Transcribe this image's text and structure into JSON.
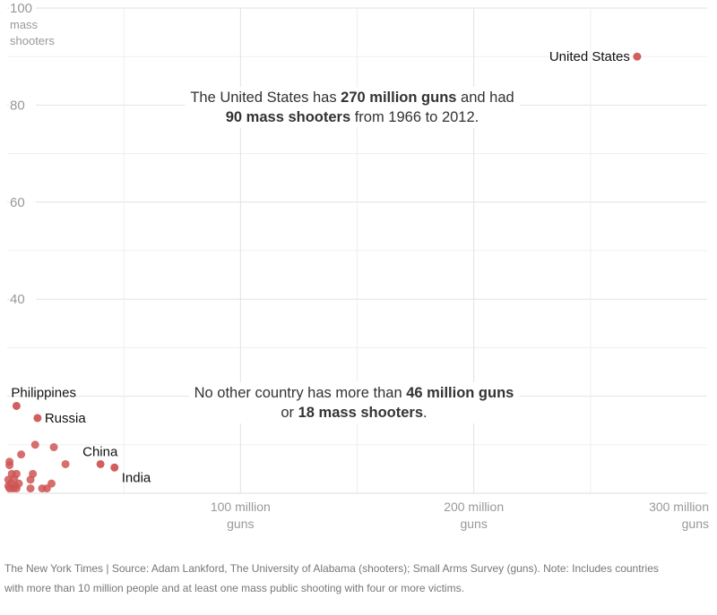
{
  "chart_data": {
    "type": "scatter",
    "title": "",
    "xlabel": "",
    "ylabel": "",
    "xlim": [
      0,
      300
    ],
    "ylim": [
      0,
      100
    ],
    "grid": true,
    "x_unit": "million guns",
    "y_unit": "mass shooters",
    "y_ticks": [
      {
        "value": 100,
        "label": "100",
        "sub": [
          "mass",
          "shooters"
        ]
      },
      {
        "value": 80,
        "label": "80"
      },
      {
        "value": 60,
        "label": "60"
      },
      {
        "value": 40,
        "label": "40"
      }
    ],
    "x_ticks": [
      {
        "value": 100,
        "line1": "100 million",
        "line2": "guns"
      },
      {
        "value": 200,
        "line1": "200 million",
        "line2": "guns"
      },
      {
        "value": 300,
        "line1": "300 million",
        "line2": "guns"
      }
    ],
    "point_color": "#d05555",
    "labeled_points": [
      {
        "name": "United States",
        "x": 270,
        "y": 90
      },
      {
        "name": "Philippines",
        "x": 4,
        "y": 18
      },
      {
        "name": "Russia",
        "x": 13,
        "y": 15.5
      },
      {
        "name": "China",
        "x": 40,
        "y": 6
      },
      {
        "name": "India",
        "x": 46,
        "y": 5.3
      }
    ],
    "unlabeled_points": [
      {
        "x": 12,
        "y": 10
      },
      {
        "x": 20,
        "y": 9.5
      },
      {
        "x": 6,
        "y": 8
      },
      {
        "x": 25,
        "y": 6
      },
      {
        "x": 1,
        "y": 6.5
      },
      {
        "x": 1,
        "y": 5.8
      },
      {
        "x": 4,
        "y": 4
      },
      {
        "x": 11,
        "y": 4
      },
      {
        "x": 2,
        "y": 4
      },
      {
        "x": 19,
        "y": 2
      },
      {
        "x": 0.5,
        "y": 2.8
      },
      {
        "x": 3,
        "y": 3
      },
      {
        "x": 10,
        "y": 2.8
      },
      {
        "x": 1,
        "y": 1
      },
      {
        "x": 2.5,
        "y": 1
      },
      {
        "x": 4,
        "y": 1
      },
      {
        "x": 10,
        "y": 1
      },
      {
        "x": 15,
        "y": 1
      },
      {
        "x": 17,
        "y": 1
      },
      {
        "x": 0.5,
        "y": 1.5
      },
      {
        "x": 1.5,
        "y": 2
      },
      {
        "x": 3.5,
        "y": 1.5
      },
      {
        "x": 5,
        "y": 2
      }
    ],
    "annotations": [
      {
        "id": "us-note",
        "lines": [
          [
            {
              "t": "The United States has ",
              "b": false
            },
            {
              "t": "270 million guns",
              "b": true
            },
            {
              "t": " and had",
              "b": false
            }
          ],
          [
            {
              "t": "90 mass shooters",
              "b": true
            },
            {
              "t": " from 1966 to 2012.",
              "b": false
            }
          ]
        ]
      },
      {
        "id": "other-note",
        "lines": [
          [
            {
              "t": "No other country has more than ",
              "b": false
            },
            {
              "t": "46 million guns",
              "b": true
            }
          ],
          [
            {
              "t": "or ",
              "b": false
            },
            {
              "t": "18 mass shooters",
              "b": true
            },
            {
              "t": ".",
              "b": false
            }
          ]
        ]
      }
    ]
  },
  "footer": {
    "line1": "The New York Times  |  Source: Adam Lankford, The University of Alabama (shooters); Small Arms Survey (guns). Note: Includes countries",
    "line2": "with more than 10 million people and at least one mass public shooting with four or more victims."
  }
}
